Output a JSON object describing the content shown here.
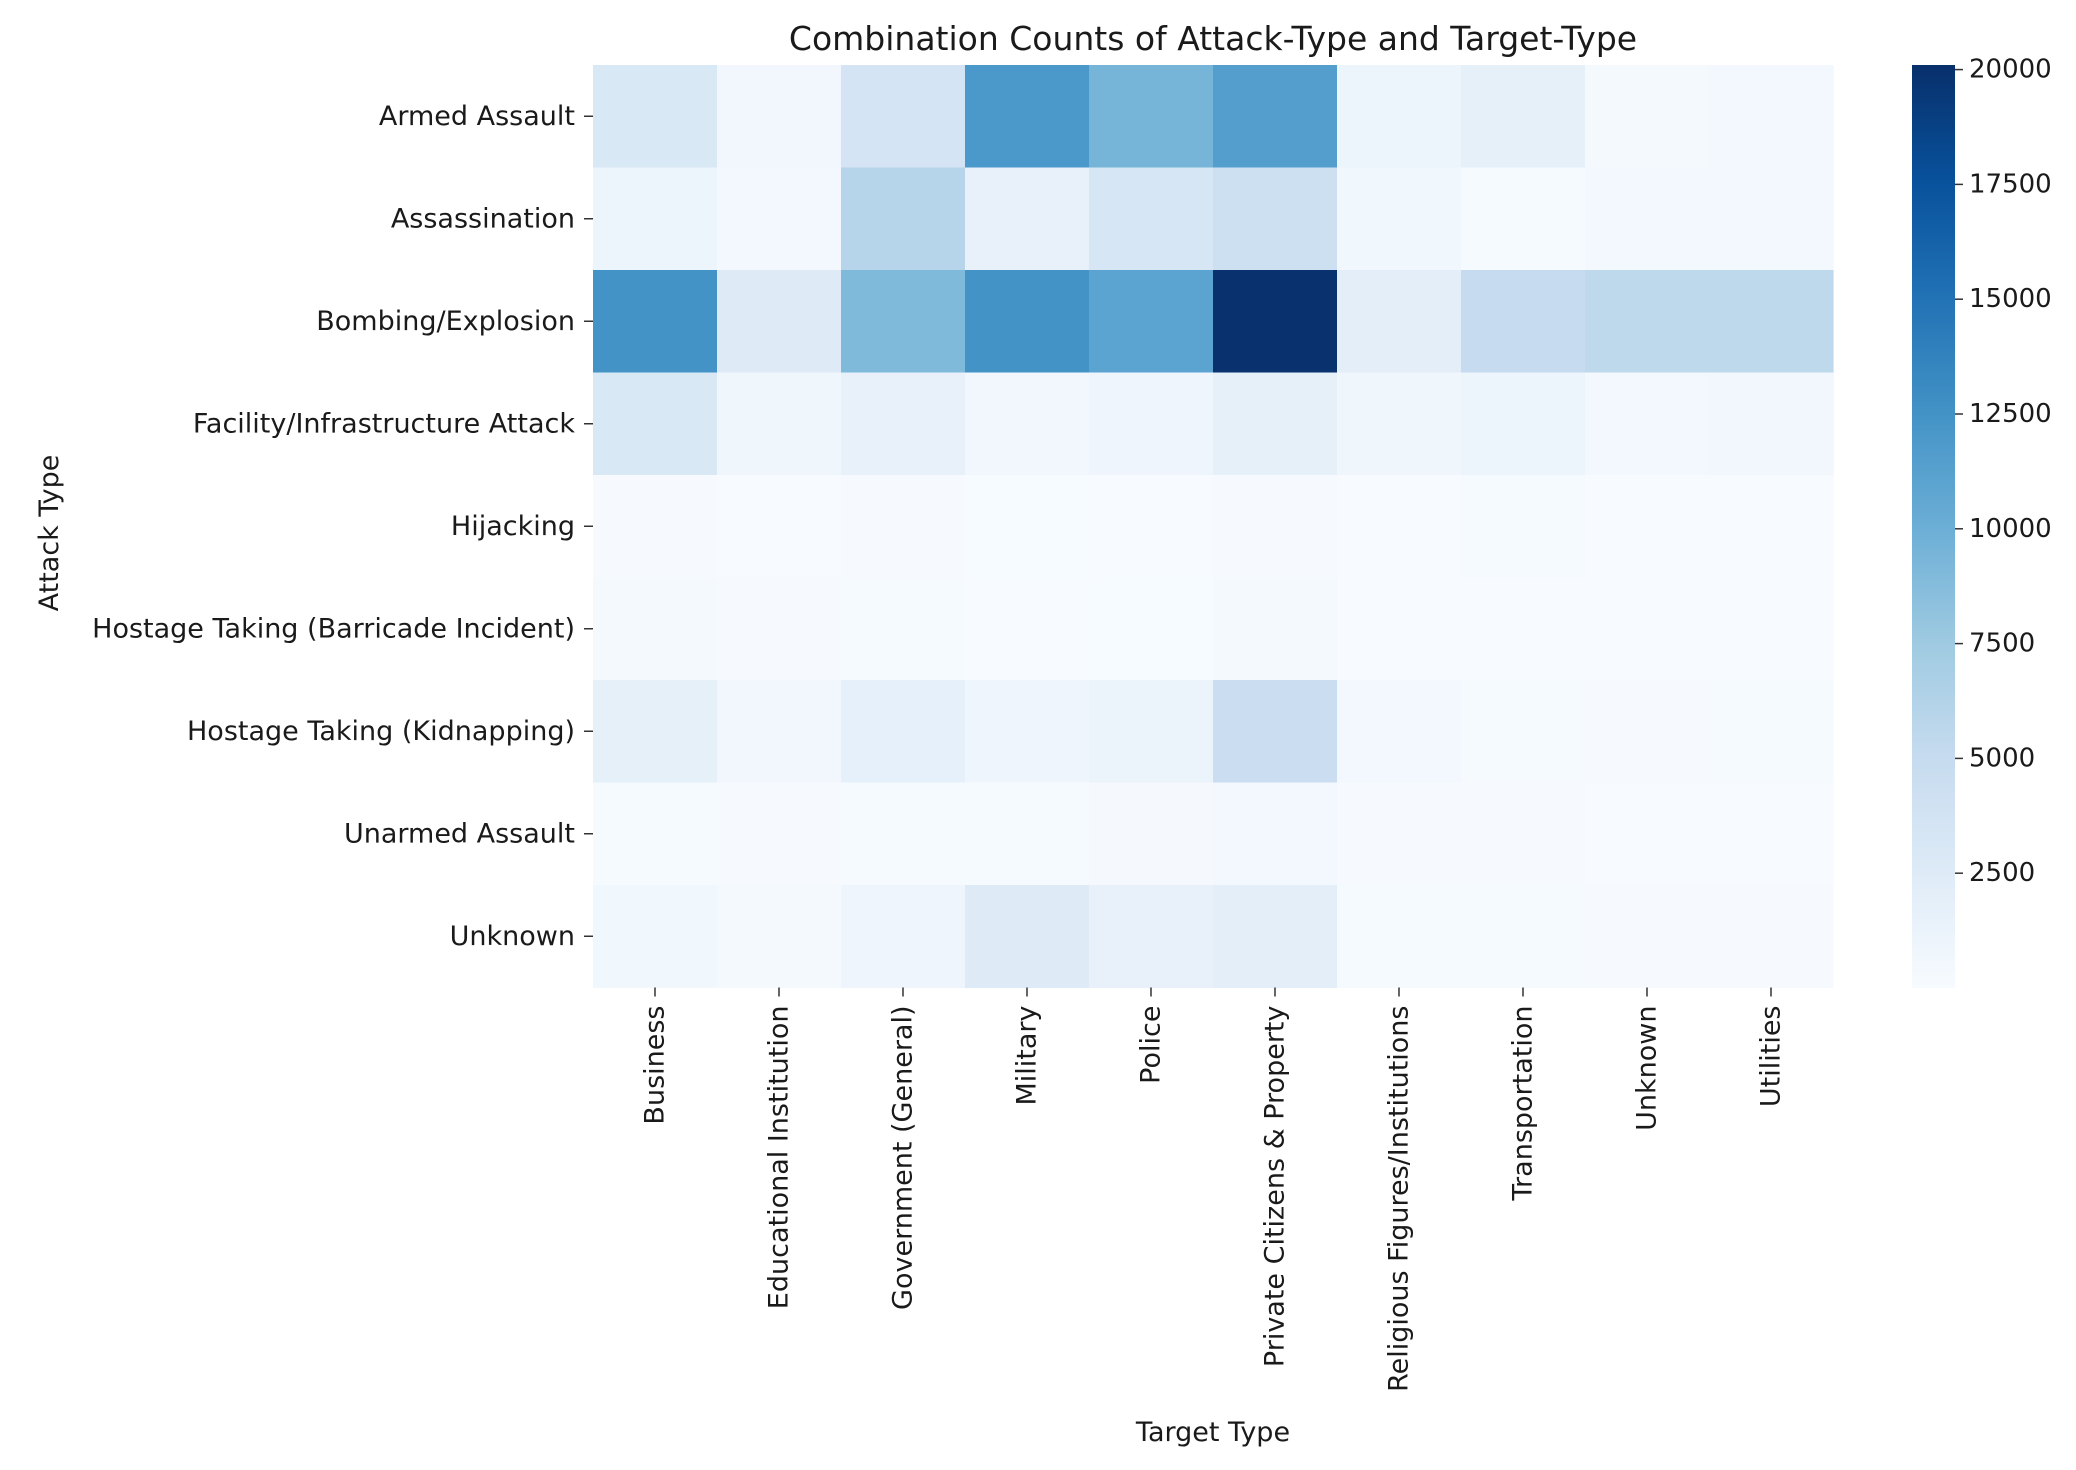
{
  "chart_data": {
    "type": "heatmap",
    "title": "Combination Counts of Attack-Type and Target-Type",
    "xlabel": "Target Type",
    "ylabel": "Attack Type",
    "x_categories": [
      "Business",
      "Educational Institution",
      "Government (General)",
      "Military",
      "Police",
      "Private Citizens & Property",
      "Religious Figures/Institutions",
      "Transportation",
      "Unknown",
      "Utilities"
    ],
    "y_categories": [
      "Armed Assault",
      "Assassination",
      "Bombing/Explosion",
      "Facility/Infrastructure Attack",
      "Hijacking",
      "Hostage Taking (Barricade Incident)",
      "Hostage Taking (Kidnapping)",
      "Unarmed Assault",
      "Unknown"
    ],
    "values": [
      [
        3000,
        600,
        3600,
        12000,
        9500,
        11500,
        1000,
        1800,
        300,
        400
      ],
      [
        1000,
        500,
        6000,
        1500,
        3300,
        4300,
        700,
        200,
        400,
        500
      ],
      [
        12500,
        2500,
        9000,
        12500,
        11000,
        20000,
        2000,
        5000,
        5500,
        5500
      ],
      [
        3000,
        800,
        1500,
        600,
        900,
        1800,
        800,
        1000,
        400,
        600
      ],
      [
        100,
        50,
        80,
        60,
        40,
        150,
        30,
        200,
        20,
        30
      ],
      [
        300,
        100,
        200,
        50,
        60,
        300,
        50,
        40,
        30,
        20
      ],
      [
        1800,
        600,
        1700,
        900,
        1100,
        4500,
        400,
        200,
        100,
        200
      ],
      [
        200,
        150,
        200,
        200,
        250,
        500,
        100,
        100,
        50,
        50
      ],
      [
        700,
        300,
        900,
        2500,
        1500,
        2000,
        200,
        200,
        100,
        100
      ]
    ],
    "colorbar": {
      "min": 0,
      "max": 20100,
      "ticks": [
        "2500",
        "5000",
        "7500",
        "10000",
        "12500",
        "15000",
        "17500",
        "20000"
      ]
    },
    "colormap": [
      "#f7fbff",
      "#deebf7",
      "#c6dbef",
      "#9ecae1",
      "#6baed6",
      "#4292c6",
      "#2171b5",
      "#08519c",
      "#08306b"
    ]
  }
}
